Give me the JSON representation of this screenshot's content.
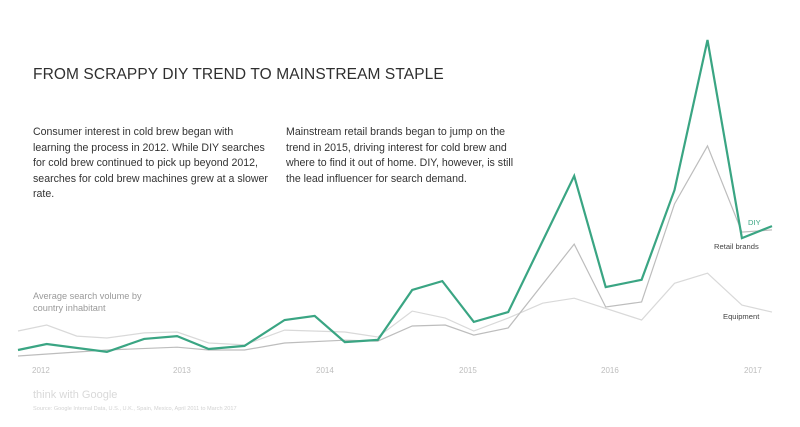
{
  "chart_data": {
    "type": "line",
    "title": "FROM SCRAPPY DIY TREND TO MAINSTREAM STAPLE",
    "annotations": [
      "Consumer interest in cold brew began with learning the process in 2012. While DIY searches for cold brew continued to pick up beyond 2012, searches for cold brew machines grew at a slower rate.",
      "Mainstream retail brands began to jump on the trend in 2015, driving interest for cold brew and where to find it out of home. DIY, however, is still the lead influencer for search demand."
    ],
    "ylabel": "Average search volume by country inhabitant",
    "xlabel": "",
    "x_ticks": [
      "2012",
      "2013",
      "2014",
      "2015",
      "2016",
      "2017"
    ],
    "xlim": [
      2011.9,
      2017.15
    ],
    "ylim": [
      0,
      100
    ],
    "grid": false,
    "legend": "inline-right",
    "series": [
      {
        "name": "Equipment",
        "color": "#d9d9d9",
        "x": [
          2011.92,
          2012.12,
          2012.33,
          2012.54,
          2012.8,
          2013.03,
          2013.25,
          2013.5,
          2013.78,
          2014.2,
          2014.43,
          2014.67,
          2014.9,
          2015.1,
          2015.34,
          2015.58,
          2015.8,
          2016.27,
          2016.5,
          2016.73,
          2016.97,
          2017.18
        ],
        "values": [
          7.9,
          9.8,
          6.3,
          5.7,
          7.3,
          7.6,
          4.1,
          3.5,
          8.2,
          7.6,
          6.0,
          14.2,
          12.0,
          7.9,
          12.0,
          16.7,
          18.3,
          11.4,
          23.0,
          26.2,
          16.1,
          13.9
        ]
      },
      {
        "name": "Retail brands",
        "color": "#bdbdbd",
        "x": [
          2011.92,
          2012.54,
          2013.03,
          2013.25,
          2013.5,
          2013.78,
          2014.2,
          2014.43,
          2014.67,
          2014.9,
          2015.1,
          2015.34,
          2015.8,
          2016.02,
          2016.27,
          2016.5,
          2016.73,
          2016.97,
          2017.18
        ],
        "values": [
          0,
          1.9,
          2.8,
          1.9,
          1.9,
          4.1,
          5.0,
          4.7,
          9.5,
          9.8,
          6.6,
          8.9,
          35.4,
          15.5,
          17.1,
          48.1,
          66.5,
          39.2,
          39.9
        ]
      },
      {
        "name": "DIY",
        "color": "#3aa583",
        "x": [
          2011.92,
          2012.12,
          2012.54,
          2012.8,
          2013.03,
          2013.25,
          2013.5,
          2013.78,
          2013.99,
          2014.2,
          2014.43,
          2014.67,
          2014.88,
          2015.1,
          2015.34,
          2015.8,
          2016.02,
          2016.27,
          2016.5,
          2016.73,
          2016.97,
          2017.18
        ],
        "values": [
          1.9,
          3.8,
          1.3,
          5.4,
          6.3,
          2.2,
          3.2,
          11.4,
          12.7,
          4.4,
          5.1,
          20.9,
          23.7,
          10.8,
          13.9,
          57.0,
          21.8,
          24.1,
          52.5,
          100,
          37.3,
          41.1
        ]
      }
    ]
  },
  "branding": {
    "logo_text": "think with Google",
    "source": "Source: Google Internal Data, U.S., U.K., Spain, Mexico, April 2011 to March 2017"
  }
}
